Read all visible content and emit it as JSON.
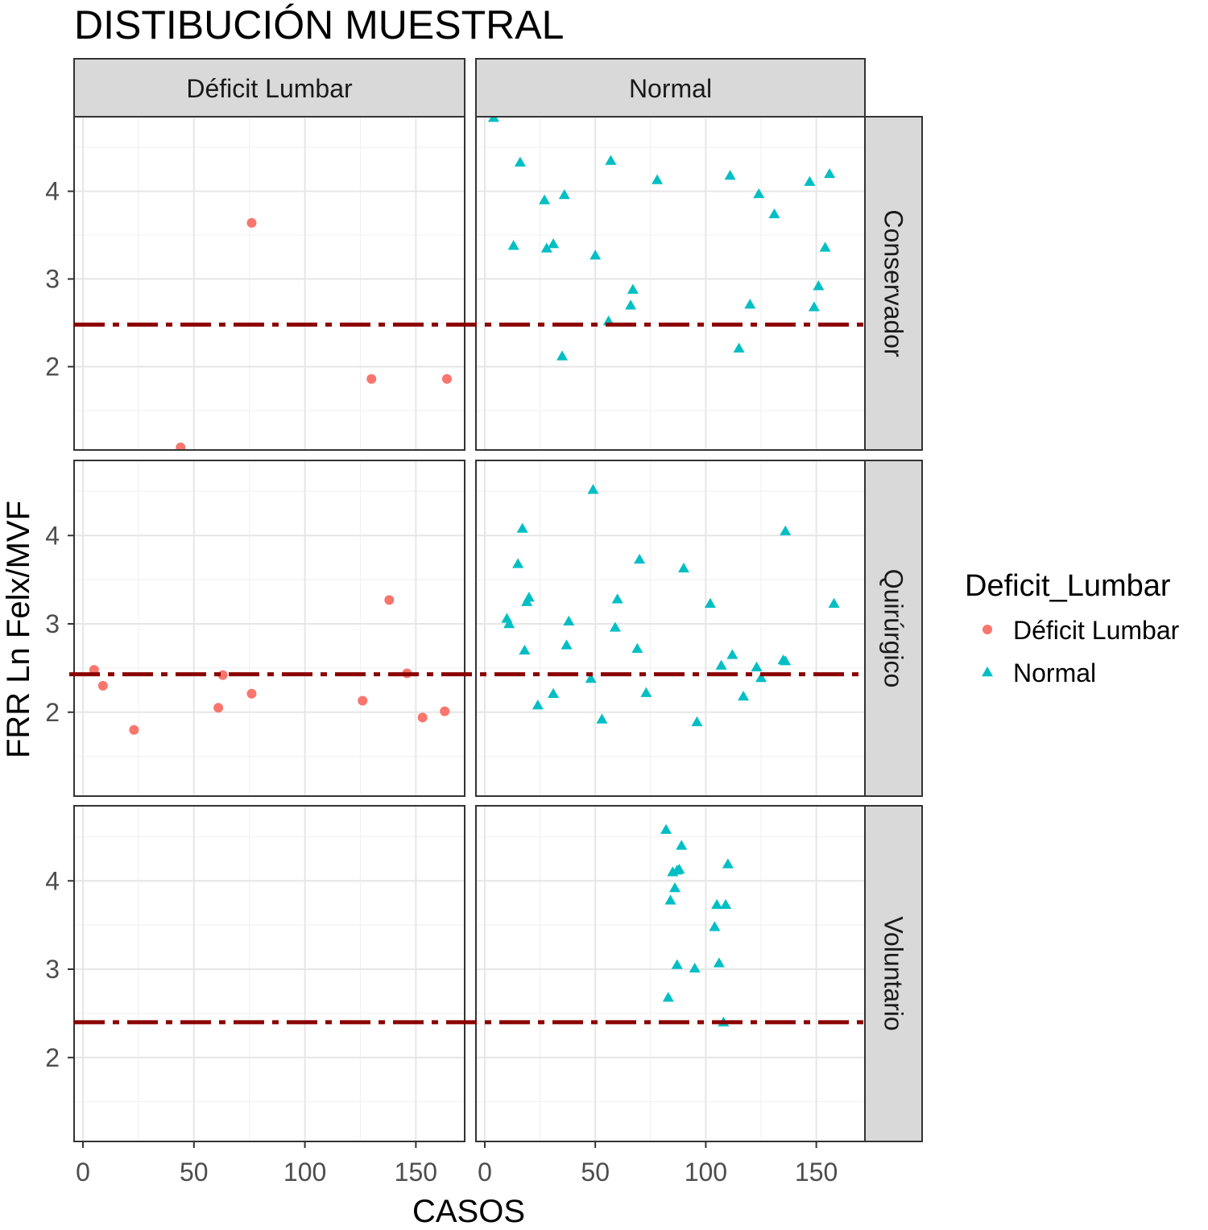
{
  "chart_data": {
    "type": "scatter",
    "title": "DISTIBUCIÓN MUESTRAL",
    "xlabel": "CASOS",
    "ylabel": "FRR Ln Felx/MVF",
    "xlim": [
      -4,
      172
    ],
    "ylim": [
      1.05,
      4.85
    ],
    "x_ticks": [
      0,
      50,
      100,
      150
    ],
    "y_ticks": [
      2,
      3,
      4
    ],
    "grid": true,
    "facet_cols": [
      "Déficit Lumbar",
      "Normal"
    ],
    "facet_rows": [
      "Conservador",
      "Quirúrgico",
      "Voluntario"
    ],
    "legend": {
      "title": "Deficit_Lumbar",
      "position": "right",
      "entries": [
        {
          "label": "Déficit Lumbar",
          "color": "#F8766D",
          "shape": "circle"
        },
        {
          "label": "Normal",
          "color": "#00BFC4",
          "shape": "triangle"
        }
      ]
    },
    "reference_line": {
      "color": "#8B0000",
      "style": "dashdot"
    },
    "panels": [
      {
        "row": "Conservador",
        "col": "Déficit Lumbar",
        "hline": 2.48,
        "points": [
          [
            44,
            1.08
          ],
          [
            76,
            3.64
          ],
          [
            130,
            1.86
          ],
          [
            164,
            1.86
          ]
        ]
      },
      {
        "row": "Conservador",
        "col": "Normal",
        "hline": 2.48,
        "points": [
          [
            4,
            4.84
          ],
          [
            16,
            4.33
          ],
          [
            13,
            3.38
          ],
          [
            27,
            3.9
          ],
          [
            28,
            3.35
          ],
          [
            31,
            3.4
          ],
          [
            36,
            3.96
          ],
          [
            35,
            2.12
          ],
          [
            50,
            3.27
          ],
          [
            56,
            2.52
          ],
          [
            57,
            4.35
          ],
          [
            66,
            2.7
          ],
          [
            67,
            2.88
          ],
          [
            78,
            4.13
          ],
          [
            111,
            4.18
          ],
          [
            115,
            2.21
          ],
          [
            120,
            2.71
          ],
          [
            124,
            3.97
          ],
          [
            131,
            3.74
          ],
          [
            147,
            4.11
          ],
          [
            149,
            2.68
          ],
          [
            151,
            2.92
          ],
          [
            154,
            3.36
          ],
          [
            156,
            4.2
          ]
        ]
      },
      {
        "row": "Quirúrgico",
        "col": "Déficit Lumbar",
        "hline": 2.43,
        "points": [
          [
            5,
            2.48
          ],
          [
            9,
            2.3
          ],
          [
            23,
            1.8
          ],
          [
            61,
            2.05
          ],
          [
            63,
            2.42
          ],
          [
            76,
            2.21
          ],
          [
            126,
            2.13
          ],
          [
            138,
            3.27
          ],
          [
            146,
            2.44
          ],
          [
            153,
            1.94
          ],
          [
            163,
            2.01
          ]
        ]
      },
      {
        "row": "Quirúrgico",
        "col": "Normal",
        "hline": 2.43,
        "points": [
          [
            10,
            3.06
          ],
          [
            11,
            3.0
          ],
          [
            15,
            3.68
          ],
          [
            17,
            4.08
          ],
          [
            18,
            2.7
          ],
          [
            19,
            3.25
          ],
          [
            20,
            3.3
          ],
          [
            24,
            2.08
          ],
          [
            31,
            2.21
          ],
          [
            37,
            2.76
          ],
          [
            38,
            3.03
          ],
          [
            48,
            2.38
          ],
          [
            49,
            4.52
          ],
          [
            53,
            1.92
          ],
          [
            59,
            2.96
          ],
          [
            60,
            3.28
          ],
          [
            69,
            2.72
          ],
          [
            70,
            3.73
          ],
          [
            73,
            2.22
          ],
          [
            90,
            3.63
          ],
          [
            96,
            1.89
          ],
          [
            102,
            3.23
          ],
          [
            107,
            2.53
          ],
          [
            112,
            2.65
          ],
          [
            117,
            2.18
          ],
          [
            123,
            2.51
          ],
          [
            125,
            2.39
          ],
          [
            135,
            2.59
          ],
          [
            136,
            2.58
          ],
          [
            136,
            4.05
          ],
          [
            158,
            3.23
          ]
        ]
      },
      {
        "row": "Voluntario",
        "col": "Déficit Lumbar",
        "hline": 2.4,
        "points": []
      },
      {
        "row": "Voluntario",
        "col": "Normal",
        "hline": 2.4,
        "points": [
          [
            82,
            4.58
          ],
          [
            83,
            2.68
          ],
          [
            84,
            3.78
          ],
          [
            85,
            4.1
          ],
          [
            86,
            3.92
          ],
          [
            87,
            4.12
          ],
          [
            87,
            3.05
          ],
          [
            88,
            4.13
          ],
          [
            89,
            4.4
          ],
          [
            95,
            3.01
          ],
          [
            104,
            3.48
          ],
          [
            105,
            3.73
          ],
          [
            106,
            3.07
          ],
          [
            108,
            2.4
          ],
          [
            109,
            3.73
          ],
          [
            110,
            4.19
          ]
        ]
      }
    ]
  }
}
